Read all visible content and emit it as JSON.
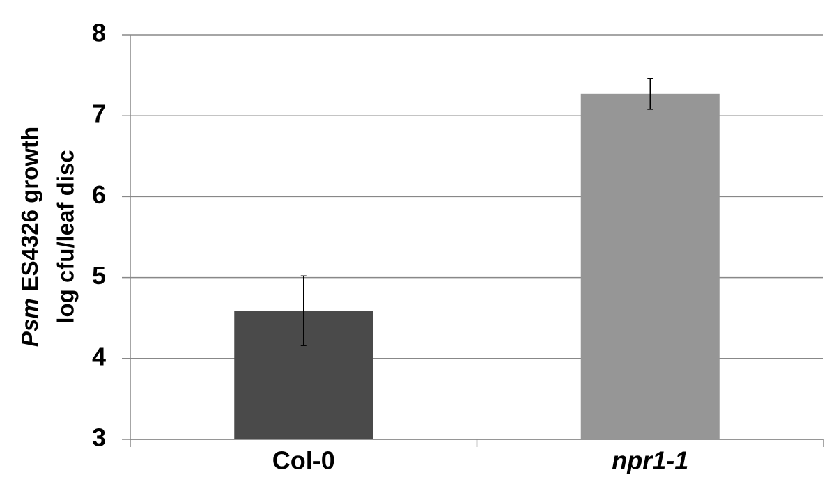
{
  "chart_data": {
    "type": "bar",
    "ylabel": [
      "Psm",
      "ES4326 growth",
      "log cfu/leaf disc"
    ],
    "categories": [
      "Col-0",
      "npr1-1"
    ],
    "category_italic": [
      false,
      true
    ],
    "series": [
      {
        "values": [
          4.59,
          7.27
        ],
        "errors": [
          0.43,
          0.19
        ],
        "colors": [
          "#4a4a4a",
          "#969696"
        ]
      }
    ],
    "ylim": [
      3,
      8
    ],
    "yticks": [
      3,
      4,
      5,
      6,
      7,
      8
    ],
    "grid": true
  }
}
